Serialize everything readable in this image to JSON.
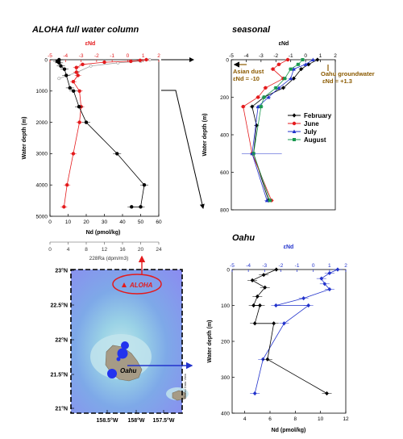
{
  "chart_data": [
    {
      "id": "aloha",
      "type": "scatter",
      "title": "ALOHA full water column",
      "xlabel": "Nd (pmol/kg)",
      "x2label": "εNd",
      "x3label": "228Ra (dpm/m3)",
      "ylabel": "Water depth (m)",
      "xlim": [
        0,
        60
      ],
      "x2lim": [
        -5,
        2
      ],
      "x3lim": [
        0,
        24
      ],
      "ylim": [
        0,
        5000
      ],
      "xticks": [
        0,
        10,
        20,
        30,
        40,
        50,
        60
      ],
      "x2ticks": [
        -5,
        -4,
        -3,
        -2,
        -1,
        0,
        1,
        2
      ],
      "x3ticks": [
        0,
        4,
        8,
        12,
        16,
        20,
        24
      ],
      "yticks": [
        0,
        1000,
        2000,
        3000,
        4000,
        5000
      ],
      "series": [
        {
          "role": "nd",
          "color": "#000000",
          "points": [
            [
              5,
              0
            ],
            [
              4,
              50
            ],
            [
              5,
              100
            ],
            [
              6,
              200
            ],
            [
              8,
              300
            ],
            [
              9,
              500
            ],
            [
              11,
              900
            ],
            [
              13,
              1000
            ],
            [
              16,
              1500
            ],
            [
              20,
              2000
            ],
            [
              37,
              3000
            ],
            [
              52,
              4000
            ],
            [
              50,
              4700
            ],
            [
              45,
              4700
            ]
          ]
        },
        {
          "role": "eps",
          "color": "#e41a1c",
          "points": [
            [
              1.2,
              0
            ],
            [
              0.8,
              20
            ],
            [
              0.2,
              50
            ],
            [
              -1.5,
              80
            ],
            [
              -2.9,
              150
            ],
            [
              -3.3,
              250
            ],
            [
              -3.3,
              400
            ],
            [
              -3.2,
              500
            ],
            [
              -3.5,
              700
            ],
            [
              -3.1,
              1000
            ],
            [
              -3.0,
              1500
            ],
            [
              -3.1,
              2000
            ],
            [
              -3.5,
              3000
            ],
            [
              -3.9,
              4000
            ],
            [
              -4.1,
              4700
            ]
          ]
        },
        {
          "role": "ra",
          "color": "#999999",
          "points": [
            [
              22,
              0
            ],
            [
              20,
              50
            ],
            [
              15,
              100
            ],
            [
              9,
              200
            ],
            [
              6,
              400
            ],
            [
              2,
              600
            ]
          ]
        }
      ]
    },
    {
      "id": "seasonal",
      "type": "line",
      "title": "seasonal",
      "x2label": "εNd",
      "ylabel": "Water depth (m)",
      "x2lim": [
        -5,
        2
      ],
      "ylim": [
        0,
        800
      ],
      "x2ticks": [
        -5,
        -4,
        -3,
        -2,
        -1,
        0,
        1,
        2
      ],
      "yticks": [
        0,
        200,
        400,
        600,
        800
      ],
      "annotations": {
        "asian_dust": [
          "Asian dust",
          "εNd = -10"
        ],
        "oahu_gw": [
          "Oahu groundwater",
          "εNd = +1.3"
        ]
      },
      "series": [
        {
          "name": "February",
          "color": "#000000",
          "marker": "diamond",
          "points": [
            [
              0.8,
              0
            ],
            [
              0.2,
              25
            ],
            [
              -0.3,
              50
            ],
            [
              -0.8,
              100
            ],
            [
              -1.5,
              150
            ],
            [
              -2.8,
              200
            ],
            [
              -3.6,
              250
            ],
            [
              -3.3,
              350
            ],
            [
              -3.5,
              500
            ],
            [
              -2.5,
              750
            ]
          ]
        },
        {
          "name": "June",
          "color": "#e41a1c",
          "marker": "circle",
          "points": [
            [
              -1.2,
              0
            ],
            [
              -1.8,
              25
            ],
            [
              -2.2,
              50
            ],
            [
              -1.5,
              100
            ],
            [
              -2.7,
              150
            ],
            [
              -3.2,
              200
            ],
            [
              -4.2,
              250
            ],
            [
              -3.6,
              500
            ],
            [
              -2.3,
              750
            ]
          ]
        },
        {
          "name": "July",
          "color": "#2233cc",
          "marker": "triangle",
          "points": [
            [
              0.5,
              0
            ],
            [
              0.0,
              25
            ],
            [
              -0.8,
              50
            ],
            [
              -1.0,
              100
            ],
            [
              -1.8,
              150
            ],
            [
              -2.5,
              200
            ],
            [
              -3.2,
              250
            ],
            [
              -3.6,
              500
            ],
            [
              -2.6,
              750
            ]
          ]
        },
        {
          "name": "August",
          "color": "#1a9850",
          "marker": "square",
          "points": [
            [
              -0.2,
              0
            ],
            [
              -0.5,
              25
            ],
            [
              -1.0,
              50
            ],
            [
              -1.4,
              100
            ],
            [
              -2.0,
              150
            ],
            [
              -2.8,
              200
            ],
            [
              -3.0,
              250
            ],
            [
              -3.5,
              500
            ],
            [
              -2.4,
              750
            ]
          ]
        }
      ]
    },
    {
      "id": "oahu",
      "type": "line",
      "title": "Oahu",
      "xlabel": "Nd (pmol/kg)",
      "x2label": "εNd",
      "ylabel": "Water depth (m)",
      "xlim": [
        3,
        12
      ],
      "x2lim": [
        -5,
        2
      ],
      "ylim": [
        0,
        400
      ],
      "xticks": [
        4,
        6,
        8,
        10,
        12
      ],
      "x2ticks": [
        -5,
        -4,
        -3,
        -2,
        -1,
        0,
        1,
        2
      ],
      "yticks": [
        0,
        100,
        200,
        300,
        400
      ],
      "series": [
        {
          "role": "nd",
          "color": "#000000",
          "points": [
            [
              6.5,
              0
            ],
            [
              5.5,
              15
            ],
            [
              4.6,
              30
            ],
            [
              5.6,
              50
            ],
            [
              5.0,
              75
            ],
            [
              4.7,
              100
            ],
            [
              5.2,
              100
            ],
            [
              4.8,
              150
            ],
            [
              6.3,
              150
            ],
            [
              5.8,
              250
            ],
            [
              10.5,
              345
            ]
          ]
        },
        {
          "role": "eps",
          "color": "#2233cc",
          "points": [
            [
              1.5,
              0
            ],
            [
              1.0,
              10
            ],
            [
              0.5,
              25
            ],
            [
              0.7,
              40
            ],
            [
              1.0,
              55
            ],
            [
              -0.6,
              80
            ],
            [
              -2.3,
              100
            ],
            [
              -0.3,
              100
            ],
            [
              -1.8,
              150
            ],
            [
              -3.1,
              250
            ],
            [
              -3.6,
              345
            ]
          ]
        }
      ]
    },
    {
      "id": "map",
      "type": "map",
      "xticks": [
        "158.5°W",
        "158°W",
        "157.5°W"
      ],
      "yticks": [
        "23°N",
        "22.5°N",
        "22°N",
        "21.5°N",
        "21°N"
      ],
      "labels": {
        "station": "ALOHA",
        "island": "Oahu",
        "credit": "Ocean Data View"
      }
    }
  ]
}
